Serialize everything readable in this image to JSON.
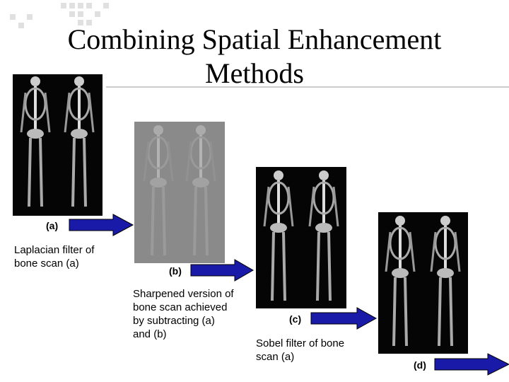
{
  "title": [
    "Combining Spatial Enhancement",
    "Methods"
  ],
  "panels": [
    {
      "label": "(a)",
      "caption": [
        "Laplacian filter of",
        "bone scan (a)"
      ]
    },
    {
      "label": "(b)",
      "caption": [
        "Sharpened version of",
        "bone scan achieved",
        "by subtracting (a)",
        "and (b)"
      ]
    },
    {
      "label": "(c)",
      "caption": [
        "Sobel filter of bone",
        "scan (a)"
      ]
    },
    {
      "label": "(d)"
    }
  ]
}
